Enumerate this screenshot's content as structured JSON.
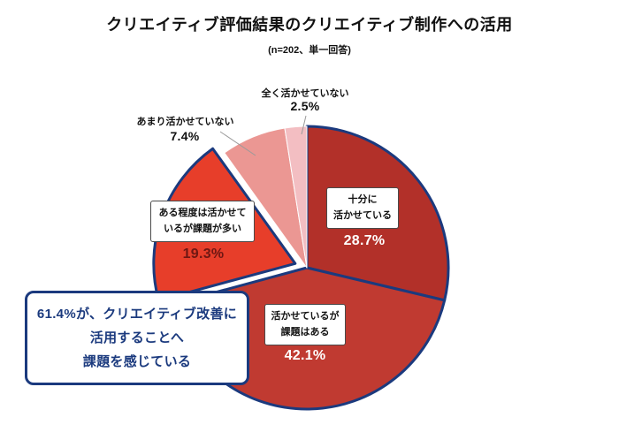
{
  "page": {
    "title": "クリエイティブ評価結果のクリエイティブ制作への活用",
    "subtitle": "(n=202、単一回答)"
  },
  "chart_data": {
    "type": "pie",
    "title": "クリエイティブ評価結果のクリエイティブ制作への活用",
    "sample_note": "(n=202、単一回答)",
    "unit": "%",
    "start_angle_deg": 0,
    "direction": "clockwise",
    "total": 100,
    "outline_color": "#1b3a7e",
    "slices": [
      {
        "label": "十分に活かせている",
        "value": 28.7,
        "pct_label": "28.7%",
        "color": "#b23029",
        "outlined": true,
        "exploded": false,
        "box_label": "十分に\n活かせている"
      },
      {
        "label": "活かせているが課題はある",
        "value": 42.1,
        "pct_label": "42.1%",
        "color": "#c03a31",
        "outlined": true,
        "exploded": false,
        "box_label": "活かせているが\n課題はある"
      },
      {
        "label": "ある程度は活かせているが課題が多い",
        "value": 19.3,
        "pct_label": "19.3%",
        "color": "#e73e2a",
        "outlined": true,
        "exploded": true,
        "box_label": "ある程度は活かせて\nいるが課題が多い"
      },
      {
        "label": "あまり活かせていない",
        "value": 7.4,
        "pct_label": "7.4%",
        "color": "#eb9793",
        "outlined": false,
        "exploded": false
      },
      {
        "label": "全く活かせていない",
        "value": 2.5,
        "pct_label": "2.5%",
        "color": "#f3bec2",
        "outlined": false,
        "exploded": false
      }
    ],
    "callout": {
      "value": "61.4%",
      "text": "61.4%が、クリエイティブ改善に\n活用することへ\n課題を感じている",
      "border_color": "#1b3a7e",
      "text_color": "#1b3a7e"
    }
  }
}
